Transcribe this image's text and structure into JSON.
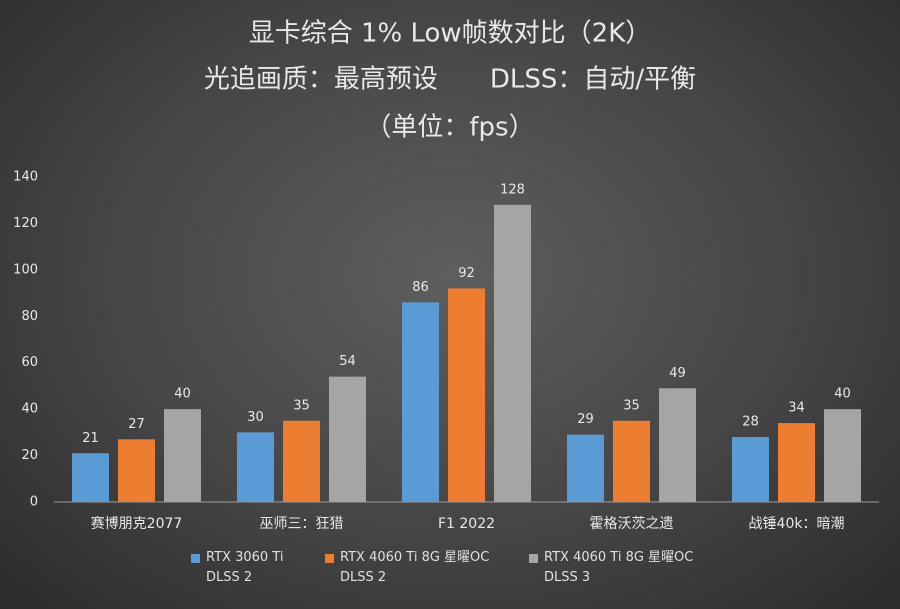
{
  "chart_data": {
    "type": "bar",
    "title": [
      "显卡综合 1% Low帧数对比（2K）",
      "光追画质：最高预设　　DLSS：自动/平衡",
      "（单位：fps）"
    ],
    "categories": [
      "赛博朋克2077",
      "巫师三：狂猎",
      "F1 2022",
      "霍格沃茨之遗",
      "战锤40k：暗潮"
    ],
    "series": [
      {
        "name": "RTX 3060 Ti DLSS 2",
        "color": "#5b9bd5",
        "values": [
          21,
          30,
          86,
          29,
          28
        ]
      },
      {
        "name": "RTX 4060 Ti 8G 星曜OC DLSS 2",
        "color": "#ed7d31",
        "values": [
          27,
          35,
          92,
          35,
          34
        ]
      },
      {
        "name": "RTX 4060 Ti 8G 星曜OC DLSS 3",
        "color": "#a5a5a5",
        "values": [
          40,
          54,
          128,
          49,
          40
        ]
      }
    ],
    "ylim": [
      0,
      140
    ],
    "yticks": [
      0,
      20,
      40,
      60,
      80,
      100,
      120,
      140
    ],
    "grid": false,
    "legend": "bottom"
  }
}
